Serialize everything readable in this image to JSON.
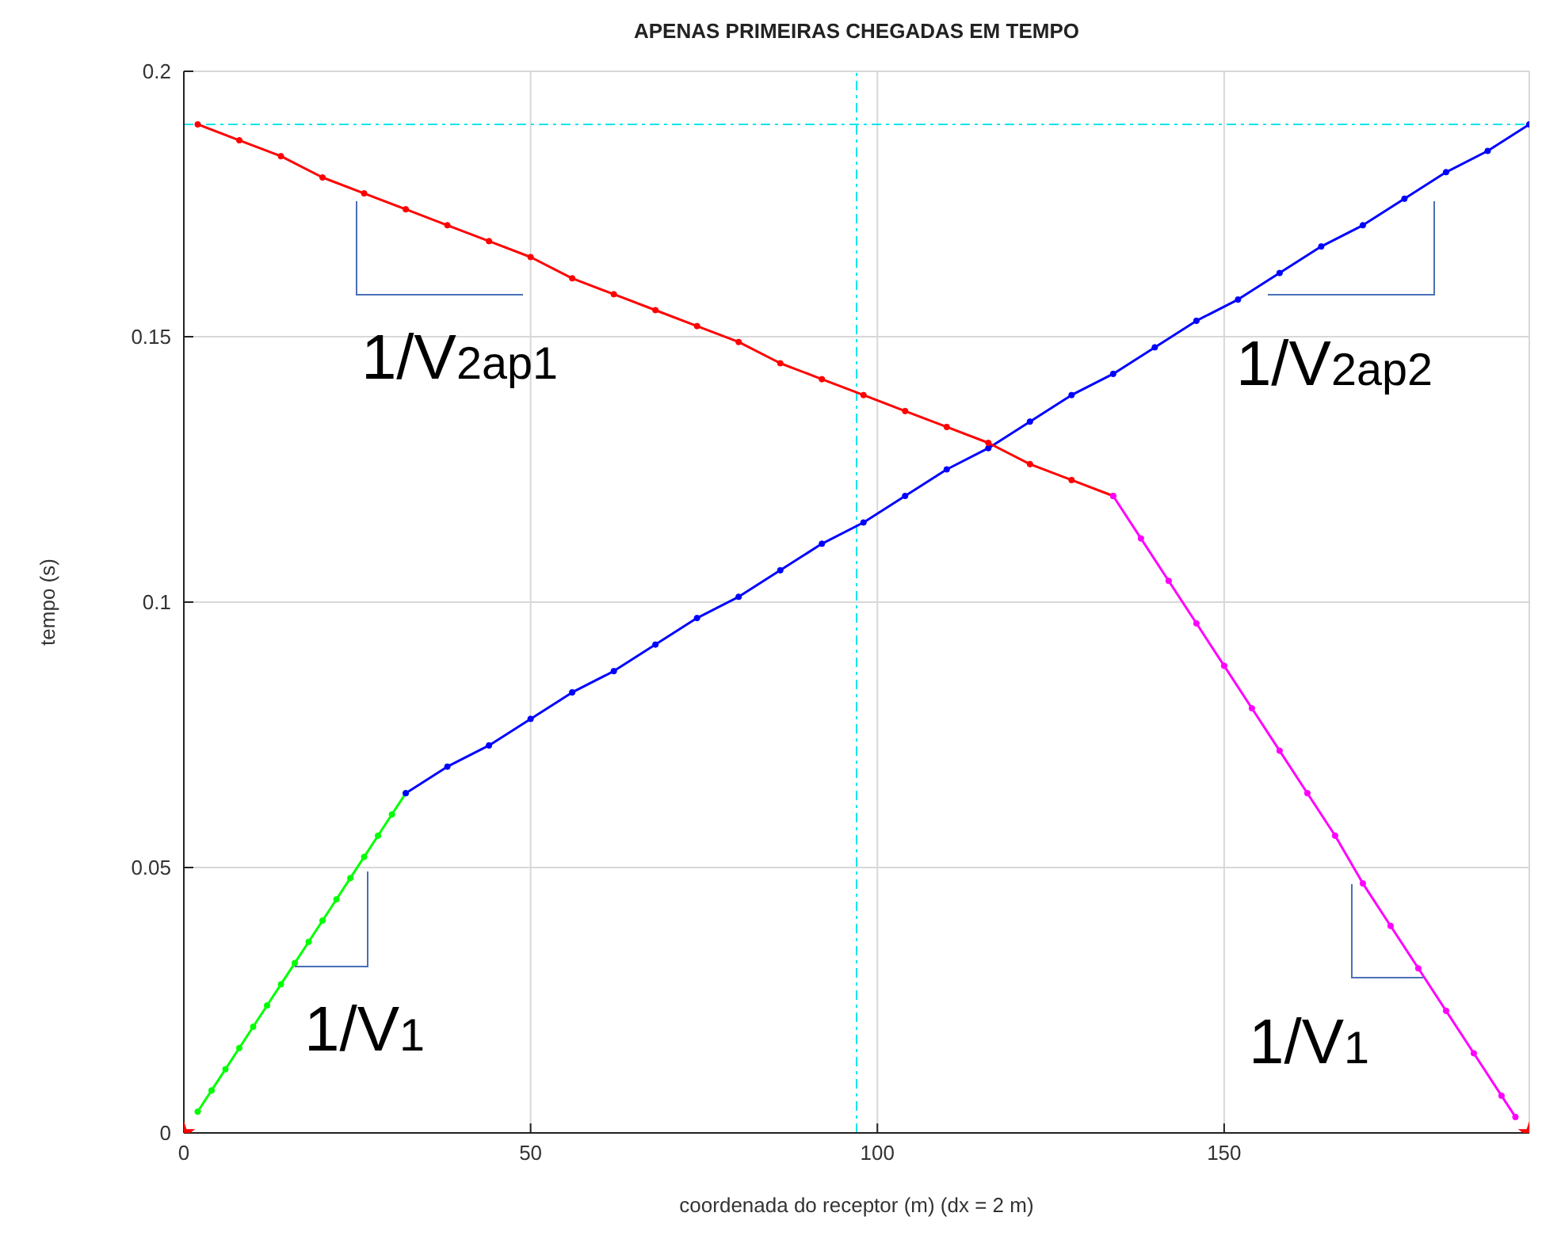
{
  "chart_data": {
    "type": "line",
    "title": "APENAS PRIMEIRAS CHEGADAS EM TEMPO",
    "xlabel": "coordenada do receptor (m) (dx = 2 m)",
    "ylabel": "tempo (s)",
    "xlim": [
      0,
      194
    ],
    "ylim": [
      0,
      0.2
    ],
    "xticks": [
      0,
      50,
      100,
      150
    ],
    "yticks": [
      0,
      0.05,
      0.1,
      0.15,
      0.2
    ],
    "grid": true,
    "marker": "circle",
    "line_style": "solid",
    "series": [
      {
        "color": "#00ff00",
        "x": [
          2,
          4,
          6,
          8,
          10,
          12,
          14,
          16,
          18,
          20,
          22,
          24,
          26,
          28,
          30,
          32
        ],
        "values": [
          0.004,
          0.008,
          0.012,
          0.016,
          0.02,
          0.024,
          0.028,
          0.032,
          0.036,
          0.04,
          0.044,
          0.048,
          0.052,
          0.056,
          0.06,
          0.064
        ]
      },
      {
        "color": "#0000ff",
        "x": [
          32,
          38,
          44,
          50,
          56,
          62,
          68,
          74,
          80,
          86,
          92,
          98,
          104,
          110,
          116,
          122,
          128,
          134,
          140,
          146,
          152,
          158,
          164,
          170,
          176,
          182,
          188,
          194
        ],
        "values": [
          0.064,
          0.069,
          0.073,
          0.078,
          0.083,
          0.087,
          0.092,
          0.097,
          0.101,
          0.106,
          0.111,
          0.115,
          0.12,
          0.125,
          0.129,
          0.134,
          0.139,
          0.143,
          0.148,
          0.153,
          0.157,
          0.162,
          0.167,
          0.171,
          0.176,
          0.181,
          0.185,
          0.19
        ]
      },
      {
        "color": "#ff0000",
        "x": [
          2,
          8,
          14,
          20,
          26,
          32,
          38,
          44,
          50,
          56,
          62,
          68,
          74,
          80,
          86,
          92,
          98,
          104,
          110,
          116,
          122,
          128,
          134
        ],
        "values": [
          0.19,
          0.187,
          0.184,
          0.18,
          0.177,
          0.174,
          0.171,
          0.168,
          0.165,
          0.161,
          0.158,
          0.155,
          0.152,
          0.149,
          0.145,
          0.142,
          0.139,
          0.136,
          0.133,
          0.13,
          0.126,
          0.123,
          0.12
        ]
      },
      {
        "color": "#ff00ff",
        "x": [
          134,
          138,
          142,
          146,
          150,
          154,
          158,
          162,
          166,
          170,
          174,
          178,
          182,
          186,
          190,
          192
        ],
        "values": [
          0.12,
          0.112,
          0.104,
          0.096,
          0.088,
          0.08,
          0.072,
          0.064,
          0.056,
          0.047,
          0.039,
          0.031,
          0.023,
          0.015,
          0.007,
          0.003
        ]
      },
      {
        "type": "scatter",
        "marker": "star",
        "color": "#ff0000",
        "x": [
          0,
          194
        ],
        "values": [
          0,
          0
        ]
      }
    ],
    "ref_lines": [
      {
        "axis": "y",
        "value": 0.19,
        "color": "#00e5ee",
        "line_style": "dashed"
      },
      {
        "axis": "x",
        "value": 97,
        "color": "#00e5ee",
        "line_style": "dashed"
      }
    ],
    "annotations": [
      "1/V$_{2ap1}$",
      "1/V$_{2ap2}$",
      "1/V$_{1}$",
      "1/V$_{1}$"
    ]
  }
}
